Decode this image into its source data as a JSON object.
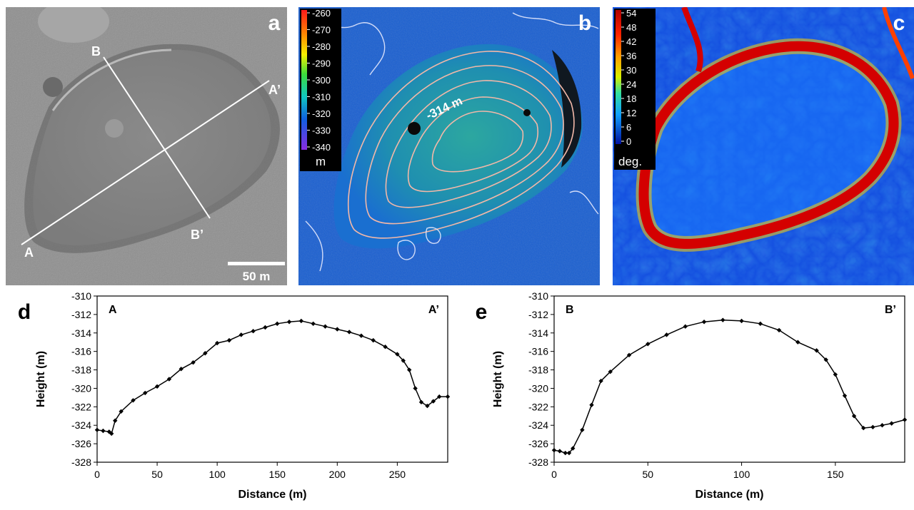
{
  "panel_a": {
    "letter": "a",
    "labels": {
      "A": "A",
      "A_prime": "A’",
      "B": "B",
      "B_prime": "B’"
    },
    "scale_bar": "50 m"
  },
  "panel_b": {
    "letter": "b",
    "colorbar_ticks": [
      "-260",
      "-270",
      "-280",
      "-290",
      "-300",
      "-310",
      "-320",
      "-330",
      "-340"
    ],
    "colorbar_unit": "m",
    "annotation": "-314 m"
  },
  "panel_c": {
    "letter": "c",
    "colorbar_ticks": [
      "54",
      "48",
      "42",
      "36",
      "30",
      "24",
      "18",
      "12",
      "6",
      "0"
    ],
    "colorbar_unit": "deg."
  },
  "chart_data": [
    {
      "type": "line",
      "panel_letter": "d",
      "start_label": "A",
      "end_label": "A’",
      "xlabel": "Distance (m)",
      "ylabel": "Height (m)",
      "xlim": [
        0,
        292
      ],
      "ylim": [
        -328,
        -310
      ],
      "xticks": [
        0,
        50,
        100,
        150,
        200,
        250
      ],
      "yticks": [
        -310,
        -312,
        -314,
        -316,
        -318,
        -320,
        -322,
        -324,
        -326,
        -328
      ],
      "x": [
        0,
        5,
        10,
        12,
        15,
        20,
        30,
        40,
        50,
        60,
        70,
        80,
        90,
        100,
        110,
        120,
        130,
        140,
        150,
        160,
        170,
        180,
        190,
        200,
        210,
        220,
        230,
        240,
        250,
        255,
        260,
        265,
        270,
        275,
        280,
        285,
        292
      ],
      "y": [
        -324.5,
        -324.6,
        -324.7,
        -324.9,
        -323.5,
        -322.5,
        -321.3,
        -320.5,
        -319.8,
        -319.0,
        -317.9,
        -317.2,
        -316.2,
        -315.1,
        -314.8,
        -314.2,
        -313.8,
        -313.4,
        -313.0,
        -312.8,
        -312.7,
        -313.0,
        -313.3,
        -313.6,
        -313.9,
        -314.3,
        -314.8,
        -315.5,
        -316.3,
        -317.0,
        -318.0,
        -320.0,
        -321.5,
        -321.9,
        -321.4,
        -320.9,
        -320.9
      ]
    },
    {
      "type": "line",
      "panel_letter": "e",
      "start_label": "B",
      "end_label": "B’",
      "xlabel": "Distance (m)",
      "ylabel": "Height (m)",
      "xlim": [
        0,
        187
      ],
      "ylim": [
        -328,
        -310
      ],
      "xticks": [
        0,
        50,
        100,
        150
      ],
      "yticks": [
        -310,
        -312,
        -314,
        -316,
        -318,
        -320,
        -322,
        -324,
        -326,
        -328
      ],
      "x": [
        0,
        3,
        6,
        8,
        10,
        15,
        20,
        25,
        30,
        40,
        50,
        60,
        70,
        80,
        90,
        100,
        110,
        120,
        130,
        140,
        145,
        150,
        155,
        160,
        165,
        170,
        175,
        180,
        187
      ],
      "y": [
        -326.7,
        -326.8,
        -327.0,
        -327.0,
        -326.5,
        -324.5,
        -321.8,
        -319.2,
        -318.2,
        -316.4,
        -315.2,
        -314.2,
        -313.3,
        -312.8,
        -312.6,
        -312.7,
        -313.0,
        -313.7,
        -315.0,
        -315.9,
        -316.9,
        -318.5,
        -320.8,
        -323.0,
        -324.3,
        -324.2,
        -324.0,
        -323.8,
        -323.4
      ]
    }
  ]
}
